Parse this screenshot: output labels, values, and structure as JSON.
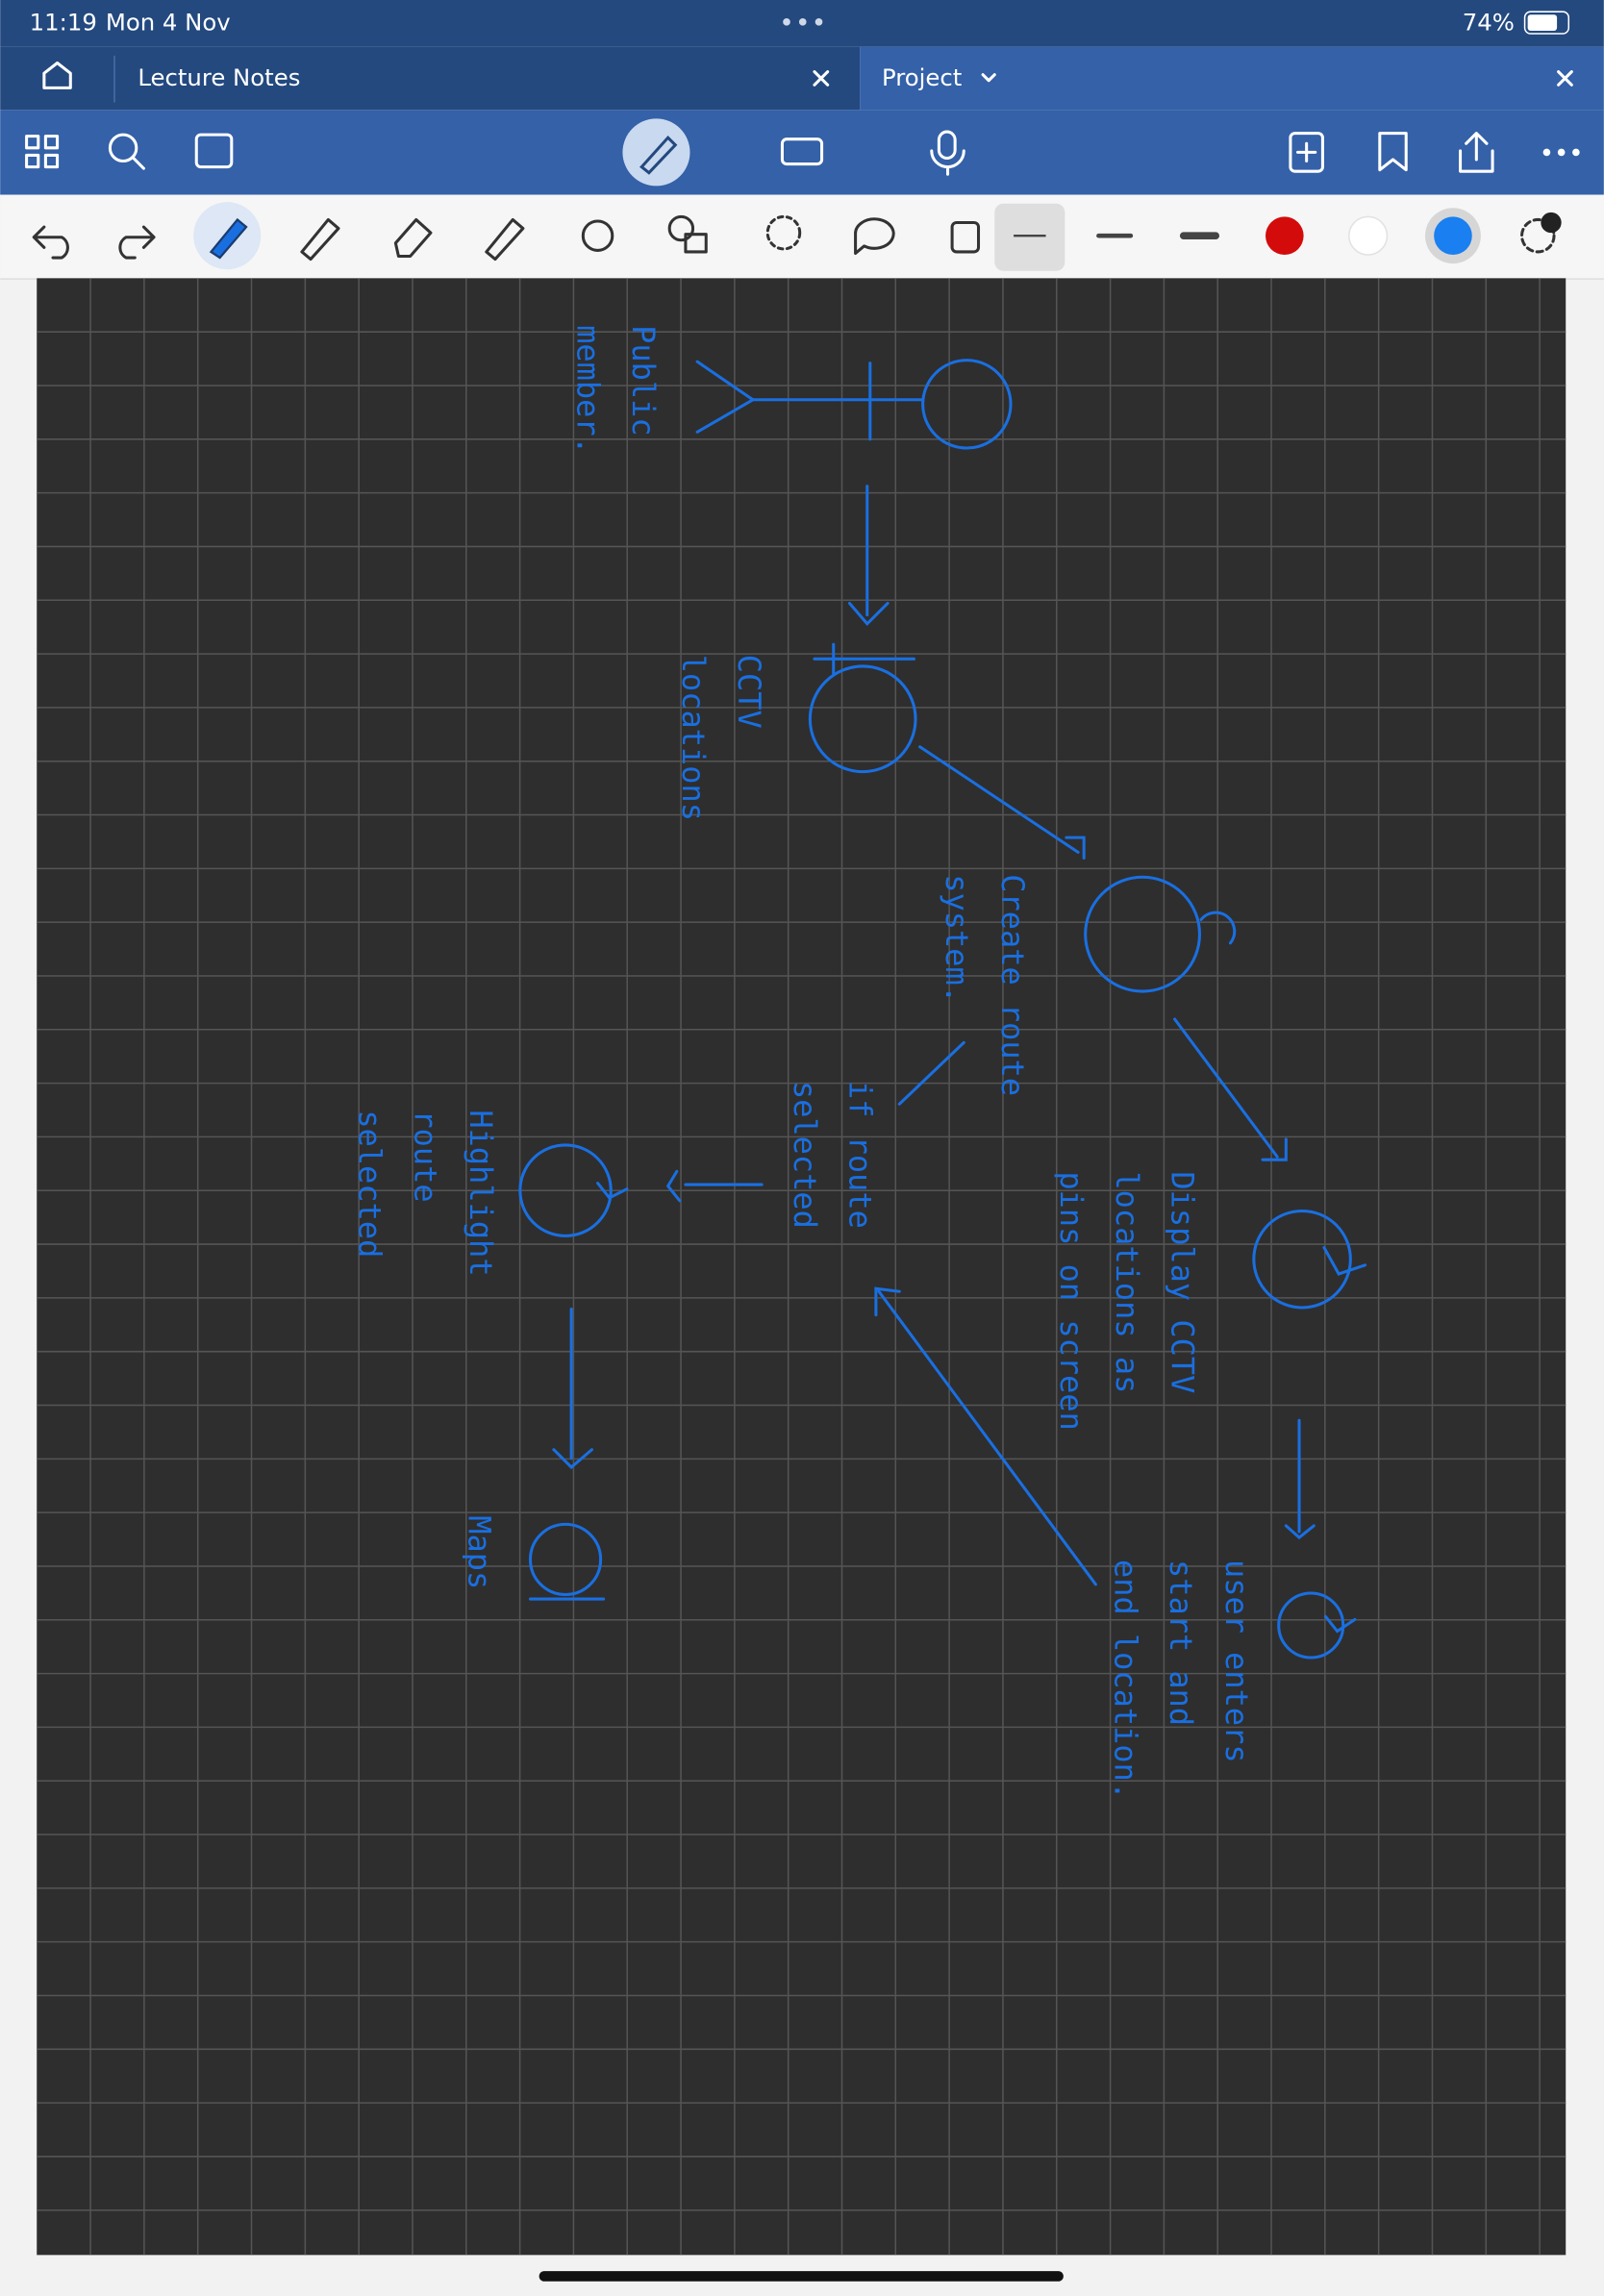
{
  "status_bar": {
    "time": "11:19",
    "date": "Mon 4 Nov",
    "battery": "74%"
  },
  "tabs": [
    {
      "label": "Lecture Notes"
    },
    {
      "label": "Project"
    }
  ],
  "notes": [
    {
      "lines": [
        "Public",
        "member."
      ]
    },
    {
      "lines": [
        "CCTV",
        "locations"
      ]
    },
    {
      "lines": [
        "Create route",
        "system."
      ]
    },
    {
      "lines": [
        "Display CCTV",
        "locations as",
        "pins on screen"
      ]
    },
    {
      "lines": [
        "user enters",
        "start and",
        "end location."
      ]
    },
    {
      "lines": [
        "if route",
        "selected"
      ]
    },
    {
      "lines": [
        "Highlight",
        "route",
        "selected"
      ]
    },
    {
      "lines": [
        "Maps"
      ]
    }
  ]
}
